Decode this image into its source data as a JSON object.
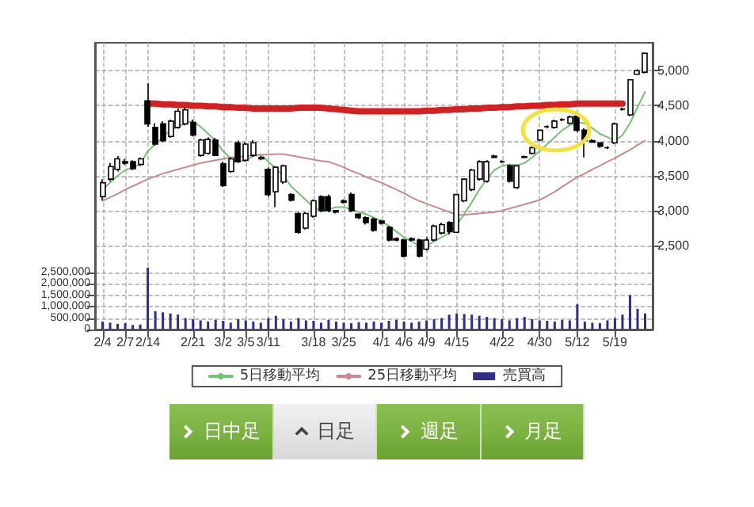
{
  "chart_data": {
    "type": "candlestick",
    "categories": [
      "2/4",
      null,
      null,
      "2/7",
      null,
      null,
      "2/14",
      null,
      null,
      null,
      null,
      null,
      "2/21",
      null,
      null,
      null,
      "3/2",
      null,
      null,
      "3/5",
      null,
      null,
      "3/11",
      null,
      null,
      null,
      null,
      null,
      "3/18",
      null,
      null,
      null,
      "3/25",
      null,
      null,
      null,
      null,
      "4/1",
      null,
      null,
      "4/6",
      null,
      null,
      "4/9",
      null,
      null,
      null,
      "4/15",
      null,
      null,
      null,
      null,
      null,
      "4/22",
      null,
      null,
      null,
      null,
      "4/30",
      null,
      null,
      null,
      null,
      "5/12",
      null,
      null,
      null,
      null,
      "5/19",
      null,
      null,
      null,
      null
    ],
    "color": "#000000",
    "ohlc": [
      [
        3200,
        3450,
        3150,
        3400
      ],
      [
        3450,
        3680,
        3420,
        3630
      ],
      [
        3590,
        3780,
        3560,
        3740
      ],
      [
        3680,
        3740,
        3650,
        3700
      ],
      [
        3700,
        3720,
        3580,
        3600
      ],
      [
        3660,
        3760,
        3640,
        3740
      ],
      [
        4570,
        4820,
        4200,
        4240
      ],
      [
        4190,
        4250,
        3930,
        3950
      ],
      [
        4240,
        4280,
        3980,
        4000
      ],
      [
        4060,
        4300,
        4040,
        4280
      ],
      [
        4190,
        4460,
        4170,
        4420
      ],
      [
        4240,
        4480,
        4220,
        4440
      ],
      [
        4260,
        4300,
        4060,
        4080
      ],
      [
        3790,
        4030,
        3770,
        4010
      ],
      [
        3820,
        4050,
        3800,
        4020
      ],
      [
        4010,
        4040,
        3780,
        3790
      ],
      [
        3670,
        3700,
        3340,
        3360
      ],
      [
        3560,
        3760,
        3540,
        3740
      ],
      [
        3970,
        4000,
        3680,
        3700
      ],
      [
        3720,
        3980,
        3700,
        3950
      ],
      [
        3790,
        4010,
        3770,
        3970
      ],
      [
        3740,
        3780,
        3720,
        3760
      ],
      [
        3590,
        3620,
        3200,
        3230
      ],
      [
        3270,
        3640,
        3050,
        3620
      ],
      [
        3410,
        3660,
        3380,
        3640
      ],
      [
        3230,
        3250,
        3130,
        3150
      ],
      [
        2960,
        2980,
        2670,
        2690
      ],
      [
        2750,
        2980,
        2730,
        2960
      ],
      [
        2920,
        3160,
        2900,
        3140
      ],
      [
        3200,
        3220,
        2980,
        3000
      ],
      [
        3200,
        3230,
        2980,
        3000
      ],
      [
        2980,
        3010,
        2960,
        3000
      ],
      [
        3140,
        3160,
        3100,
        3120
      ],
      [
        3230,
        3260,
        2980,
        3000
      ],
      [
        2950,
        2960,
        2880,
        2900
      ],
      [
        2900,
        2920,
        2800,
        2830
      ],
      [
        2880,
        2900,
        2700,
        2720
      ],
      [
        2850,
        2870,
        2800,
        2820
      ],
      [
        2760,
        2780,
        2560,
        2580
      ],
      [
        2600,
        2620,
        2560,
        2580
      ],
      [
        2580,
        2600,
        2330,
        2350
      ],
      [
        2600,
        2620,
        2560,
        2580
      ],
      [
        2580,
        2600,
        2330,
        2350
      ],
      [
        2450,
        2620,
        2430,
        2580
      ],
      [
        2580,
        2800,
        2560,
        2780
      ],
      [
        2680,
        2830,
        2660,
        2800
      ],
      [
        2830,
        2850,
        2660,
        2700
      ],
      [
        2690,
        3230,
        2680,
        3230
      ],
      [
        3140,
        3460,
        3120,
        3450
      ],
      [
        3300,
        3600,
        3280,
        3580
      ],
      [
        3450,
        3720,
        3430,
        3700
      ],
      [
        3420,
        3720,
        3400,
        3700
      ],
      [
        3780,
        3800,
        3750,
        3760
      ],
      [
        3700,
        3720,
        3680,
        3700
      ],
      [
        3640,
        3660,
        3400,
        3420
      ],
      [
        3330,
        3650,
        3310,
        3640
      ],
      [
        3770,
        3790,
        3750,
        3760
      ],
      [
        3820,
        3920,
        3800,
        3900
      ],
      [
        4010,
        4160,
        3990,
        4150
      ],
      [
        4200,
        4220,
        4180,
        4200
      ],
      [
        4190,
        4300,
        4170,
        4280
      ],
      [
        4300,
        4320,
        4280,
        4300
      ],
      [
        4250,
        4360,
        4230,
        4340
      ],
      [
        4350,
        4400,
        4120,
        4150
      ],
      [
        4150,
        4180,
        3760,
        4000
      ],
      [
        4000,
        4020,
        3970,
        3980
      ],
      [
        3970,
        3980,
        3900,
        3920
      ],
      [
        3900,
        3920,
        3880,
        3900
      ],
      [
        3970,
        4260,
        3950,
        4240
      ],
      [
        4450,
        4470,
        4430,
        4450
      ],
      [
        4370,
        4880,
        4350,
        4870
      ],
      [
        4950,
        5020,
        4940,
        5000
      ],
      [
        4980,
        5260,
        4960,
        5250
      ]
    ],
    "series": [
      {
        "type": "line",
        "name": "5日移動平均",
        "color": "#77c177",
        "values": [
          3300,
          3400,
          3500,
          3580,
          3620,
          3660,
          3850,
          3950,
          4050,
          4150,
          4200,
          4250,
          4280,
          4200,
          4100,
          4000,
          3850,
          3750,
          3700,
          3720,
          3780,
          3800,
          3700,
          3600,
          3500,
          3350,
          3250,
          3150,
          3050,
          3000,
          3020,
          3050,
          3050,
          3020,
          2980,
          2950,
          2900,
          2850,
          2780,
          2700,
          2620,
          2560,
          2500,
          2500,
          2560,
          2620,
          2680,
          2800,
          2950,
          3120,
          3300,
          3450,
          3580,
          3640,
          3660,
          3650,
          3680,
          3760,
          3850,
          3950,
          4050,
          4150,
          4220,
          4260,
          4250,
          4180,
          4100,
          4050,
          4000,
          4080,
          4250,
          4480,
          4700
        ]
      },
      {
        "type": "line",
        "name": "25日移動平均",
        "color": "#c98a8f",
        "values": [
          3140,
          3190,
          3240,
          3300,
          3350,
          3400,
          3450,
          3490,
          3530,
          3560,
          3590,
          3620,
          3650,
          3680,
          3700,
          3720,
          3740,
          3760,
          3770,
          3780,
          3790,
          3800,
          3800,
          3810,
          3810,
          3790,
          3770,
          3750,
          3730,
          3710,
          3700,
          3660,
          3620,
          3570,
          3530,
          3480,
          3440,
          3400,
          3350,
          3300,
          3250,
          3190,
          3140,
          3100,
          3060,
          3020,
          2980,
          2940,
          2940,
          2950,
          2960,
          2970,
          2980,
          3000,
          3030,
          3060,
          3090,
          3120,
          3150,
          3210,
          3270,
          3340,
          3410,
          3480,
          3530,
          3590,
          3640,
          3700,
          3750,
          3810,
          3870,
          3940,
          4000
        ]
      },
      {
        "type": "bar",
        "name": "売買高",
        "color": "#2e2e8a",
        "axis": "y2",
        "values": [
          350000,
          300000,
          250000,
          280000,
          200000,
          220000,
          2700000,
          800000,
          750000,
          700000,
          650000,
          500000,
          450000,
          400000,
          350000,
          420000,
          380000,
          300000,
          450000,
          400000,
          350000,
          300000,
          500000,
          600000,
          450000,
          350000,
          500000,
          400000,
          380000,
          300000,
          420000,
          350000,
          300000,
          280000,
          320000,
          300000,
          350000,
          300000,
          380000,
          420000,
          350000,
          300000,
          350000,
          400000,
          450000,
          500000,
          650000,
          700000,
          680000,
          650000,
          600000,
          550000,
          500000,
          450000,
          400000,
          500000,
          550000,
          450000,
          400000,
          380000,
          350000,
          420000,
          400000,
          1100000,
          350000,
          300000,
          280000,
          400000,
          500000,
          650000,
          1500000,
          900000,
          700000
        ]
      },
      {
        "type": "line",
        "color": "#d42020",
        "values": [
          null,
          null,
          null,
          null,
          null,
          null,
          4530,
          4530,
          4520,
          4520,
          4510,
          4510,
          4500,
          4500,
          4490,
          4490,
          4480,
          4480,
          4470,
          4470,
          4460,
          4460,
          4460,
          4460,
          4460,
          4460,
          4470,
          4470,
          4470,
          4470,
          4460,
          4450,
          4440,
          4430,
          4420,
          4420,
          4420,
          4420,
          4420,
          4420,
          4420,
          4420,
          4420,
          4430,
          4430,
          4440,
          4440,
          4450,
          4450,
          4460,
          4460,
          4470,
          4470,
          4480,
          4480,
          4490,
          4490,
          4500,
          4500,
          4510,
          4510,
          4520,
          4520,
          4530,
          4530,
          4530,
          4530,
          4530,
          4530,
          4530,
          null,
          null,
          null
        ]
      }
    ],
    "ylim": [
      1300,
      5400
    ],
    "yticks": [
      {
        "value": 2500,
        "label": "2,500"
      },
      {
        "value": 3000,
        "label": "3,000"
      },
      {
        "value": 3500,
        "label": "3,500"
      },
      {
        "value": 4000,
        "label": "4,000"
      },
      {
        "value": 4500,
        "label": "4,500"
      },
      {
        "value": 5000,
        "label": "5,000"
      }
    ],
    "y2lim": [
      0,
      12500000
    ],
    "y2ticks": [
      {
        "value": 0,
        "label": "0"
      },
      {
        "value": 500000,
        "label": "500,000"
      },
      {
        "value": 1000000,
        "label": "1,000,000"
      },
      {
        "value": 1500000,
        "label": "1,500,000"
      },
      {
        "value": 2000000,
        "label": "2,000,000"
      },
      {
        "value": 2500000,
        "label": "2,500,000"
      }
    ],
    "grid": true,
    "legend": "bottom",
    "annotations": [
      "日中足",
      "日足",
      "週足",
      "月足"
    ]
  }
}
